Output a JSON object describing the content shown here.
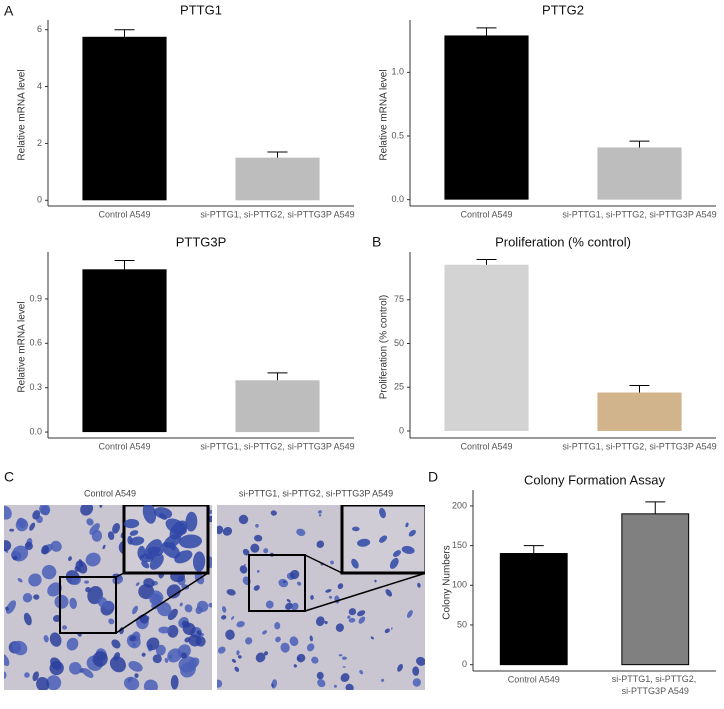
{
  "panel_labels": [
    "A",
    "B",
    "C",
    "D"
  ],
  "images": {
    "captions": [
      "Control A549",
      "si-PTTG1, si-PTTG2, si-PTTG3P A549"
    ]
  },
  "chart_data": [
    {
      "type": "bar",
      "title": "PTTG1",
      "ylabel": "Relative mRNA level",
      "categories": [
        "Control A549",
        "si-PTTG1, si-PTTG2, si-PTTG3P A549"
      ],
      "values": [
        5.75,
        1.5
      ],
      "errors": [
        0.25,
        0.2
      ],
      "colors": [
        "#000000",
        "#bdbdbd"
      ],
      "ylim": [
        -0.2,
        6.2
      ],
      "yticks": [
        0,
        2,
        4,
        6
      ]
    },
    {
      "type": "bar",
      "title": "PTTG2",
      "ylabel": "Relative mRNA level",
      "categories": [
        "Control A549",
        "si-PTTG1, si-PTTG2, si-PTTG3P A549"
      ],
      "values": [
        1.29,
        0.41
      ],
      "errors": [
        0.06,
        0.05
      ],
      "colors": [
        "#000000",
        "#bdbdbd"
      ],
      "ylim": [
        -0.05,
        1.38
      ],
      "yticks": [
        {
          "value": 0,
          "label": "0.0"
        },
        {
          "value": 0.5,
          "label": "0.5"
        },
        {
          "value": 1,
          "label": "1.0"
        }
      ]
    },
    {
      "type": "bar",
      "title": "PTTG3P",
      "ylabel": "Relative mRNA level",
      "categories": [
        "Control A549",
        "si-PTTG1, si-PTTG2, si-PTTG3P A549"
      ],
      "values": [
        1.1,
        0.35
      ],
      "errors": [
        0.06,
        0.05
      ],
      "colors": [
        "#000000",
        "#bdbdbd"
      ],
      "ylim": [
        -0.04,
        1.19
      ],
      "yticks": [
        {
          "value": 0,
          "label": "0.0"
        },
        0.3,
        0.6,
        0.9
      ]
    },
    {
      "type": "bar",
      "title": "Proliferation (% control)",
      "ylabel": "Proliferation (% control)",
      "categories": [
        "Control A549",
        "si-PTTG1, si-PTTG2, si-PTTG3P A549"
      ],
      "values": [
        95,
        22
      ],
      "errors": [
        3,
        4
      ],
      "colors": [
        "#d3d3d3",
        "#d2b48c"
      ],
      "ylim": [
        -4,
        100
      ],
      "yticks": [
        0,
        25,
        50,
        75
      ]
    },
    {
      "type": "bar",
      "title": "Colony Formation Assay",
      "ylabel": "Colony Numbers",
      "categories": [
        "Control A549",
        "si-PTTG1, si-PTTG2, si-PTTG3P A549"
      ],
      "values": [
        140,
        190
      ],
      "errors": [
        10,
        15
      ],
      "colors": [
        "#000000",
        "#808080"
      ],
      "ylim": [
        -8,
        215
      ],
      "yticks": [
        0,
        50,
        100,
        150,
        200
      ]
    }
  ]
}
